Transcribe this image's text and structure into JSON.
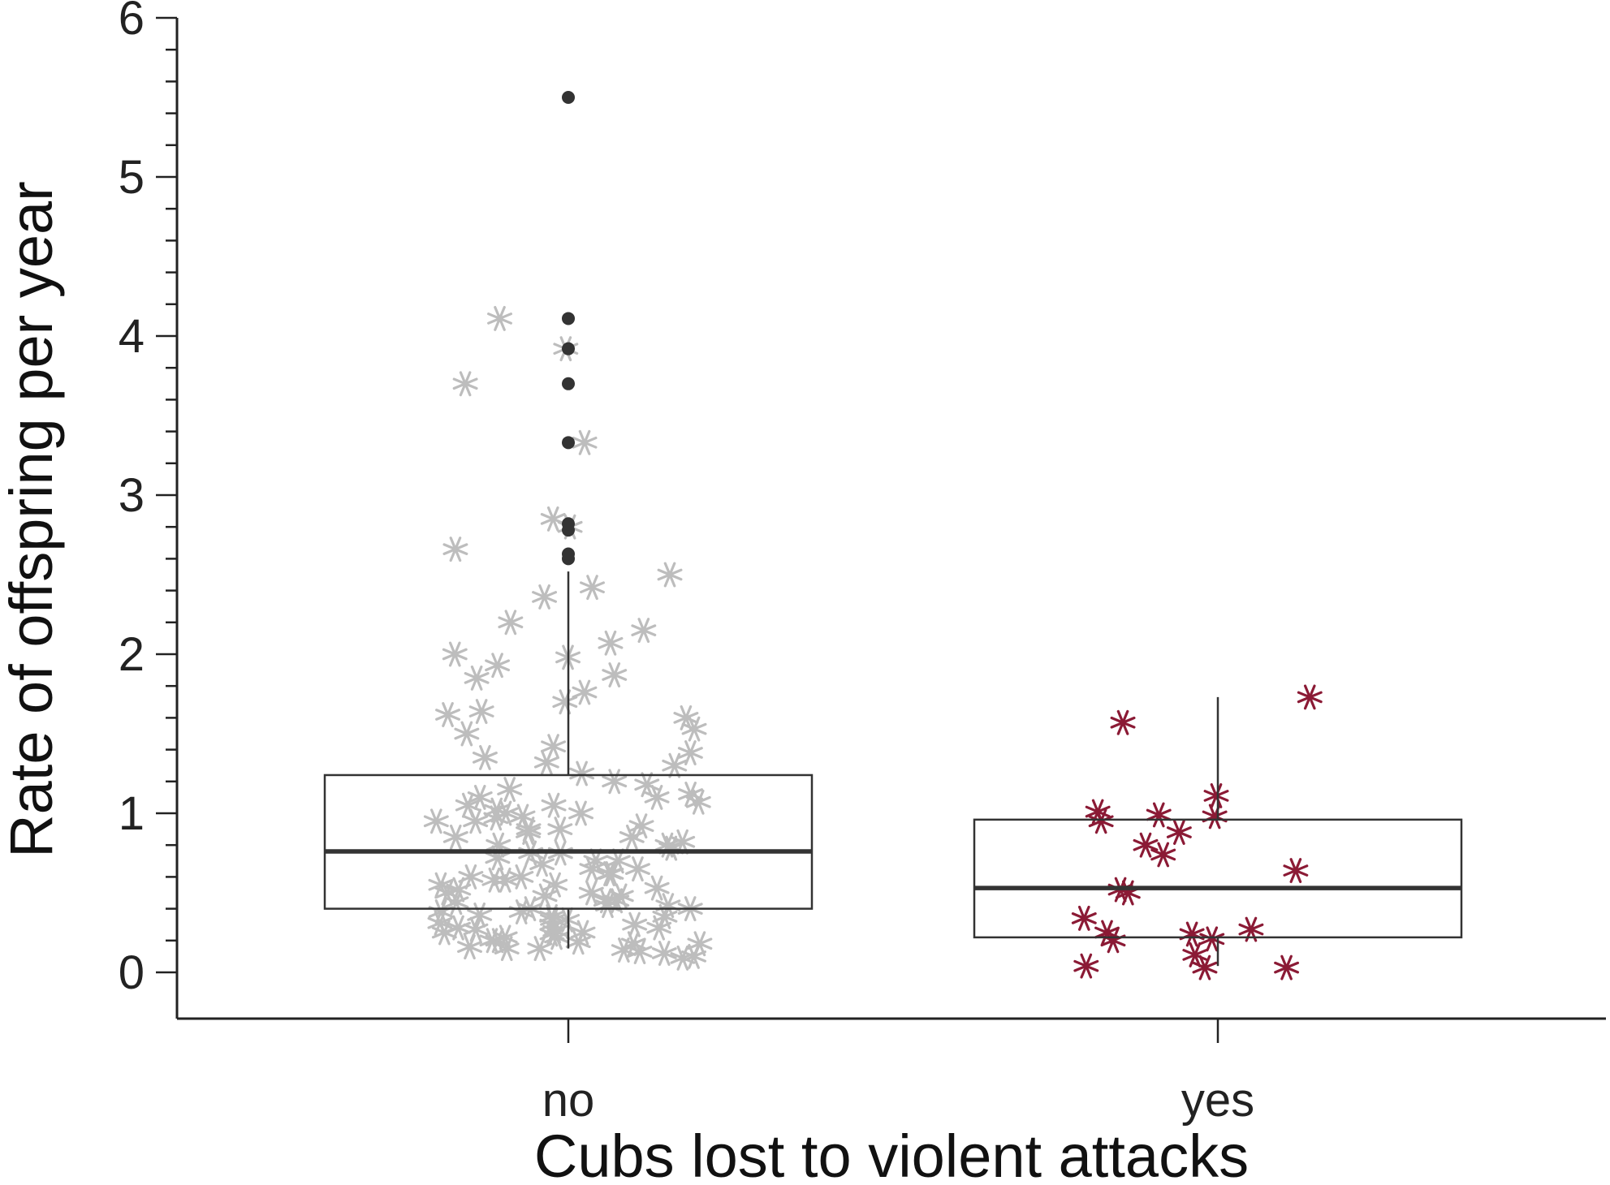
{
  "chart_data": {
    "type": "boxplot",
    "xlabel": "Cubs lost to violent attacks",
    "ylabel": "Rate of offspring per year",
    "ylim": [
      -0.3,
      6
    ],
    "yticks": [
      "0",
      "1",
      "2",
      "3",
      "4",
      "5",
      "6"
    ],
    "categories": [
      "no",
      "yes"
    ],
    "grid": false,
    "colors": {
      "no": "#bdbdbd",
      "yes": "#8b1a35",
      "box": "#333333",
      "outlier": "#333333"
    },
    "boxes": [
      {
        "category": "no",
        "q1": 0.4,
        "median": 0.76,
        "q3": 1.24,
        "whisker_low": 0.15,
        "whisker_high": 2.52,
        "outliers": [
          2.6,
          2.63,
          2.78,
          2.82,
          3.33,
          3.7,
          3.92,
          4.11,
          5.5
        ]
      },
      {
        "category": "yes",
        "q1": 0.22,
        "median": 0.53,
        "q3": 0.96,
        "whisker_low": 0.04,
        "whisker_high": 1.73,
        "outliers": []
      }
    ],
    "points": {
      "no": [
        3.92,
        3.33,
        3.7,
        4.11,
        2.85,
        2.8,
        2.66,
        2.5,
        2.42,
        2.36,
        2.2,
        2.15,
        2.07,
        2.0,
        1.98,
        1.93,
        1.87,
        1.85,
        1.76,
        1.7,
        1.64,
        1.62,
        1.6,
        1.53,
        1.5,
        1.42,
        1.38,
        1.35,
        1.32,
        1.25,
        1.2,
        1.15,
        1.1,
        1.07,
        1.05,
        1.02,
        1.0,
        0.98,
        0.95,
        0.92,
        0.9,
        0.88,
        0.85,
        0.82,
        0.8,
        0.78,
        0.75,
        0.72,
        0.7,
        0.68,
        0.65,
        0.62,
        0.6,
        0.58,
        0.55,
        0.52,
        0.5,
        0.48,
        0.45,
        0.42,
        0.4,
        0.38,
        0.35,
        0.33,
        0.3,
        0.28,
        0.26,
        0.24,
        0.22,
        0.2,
        0.18,
        0.16,
        0.15,
        0.13,
        0.12,
        0.1,
        0.09,
        0.35,
        0.3,
        0.45,
        0.25,
        0.55,
        0.6,
        0.4,
        0.2,
        0.15,
        0.7,
        0.85,
        1.0,
        1.12,
        0.95,
        0.75,
        0.5,
        0.33,
        0.28,
        0.18,
        0.22,
        0.42,
        0.65,
        0.9,
        1.05,
        1.18,
        1.3,
        0.58,
        0.38,
        0.27,
        0.14,
        0.48,
        0.62,
        0.8,
        0.97,
        1.1,
        0.36,
        0.25,
        0.44,
        0.31,
        0.19,
        0.53
      ],
      "yes": [
        1.73,
        1.57,
        1.11,
        1.01,
        0.99,
        0.98,
        0.95,
        0.88,
        0.8,
        0.74,
        0.64,
        0.52,
        0.5,
        0.34,
        0.27,
        0.25,
        0.24,
        0.2,
        0.21,
        0.11,
        0.04,
        0.03,
        0.03
      ]
    }
  }
}
